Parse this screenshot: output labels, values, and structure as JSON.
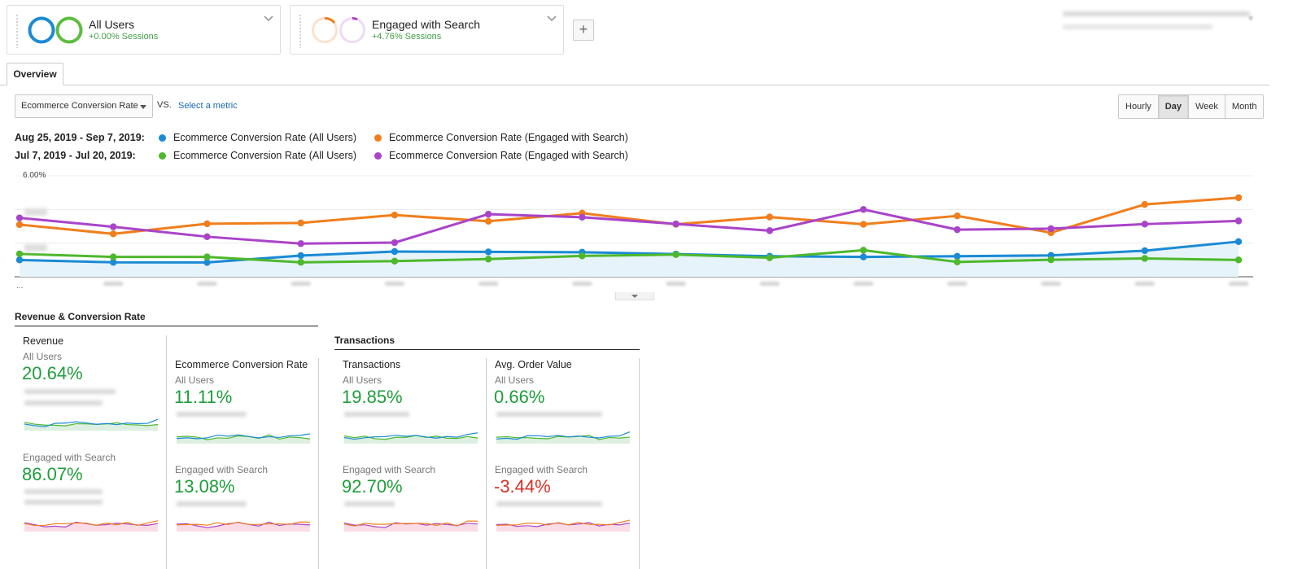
{
  "segments": [
    {
      "name": "All Users",
      "sub": "+0.00% Sessions",
      "colors": [
        "#1a8ad4",
        "#5ebd3e"
      ]
    },
    {
      "name": "Engaged with Search",
      "sub": "+4.76% Sessions",
      "colors": [
        "#f6a85a",
        "#d79ae8"
      ]
    }
  ],
  "add_segment_label": "+",
  "tabs": {
    "overview": "Overview"
  },
  "controls": {
    "metric_select": "Ecommerce Conversion Rate",
    "vs": "VS.",
    "select_metric": "Select a metric",
    "granularity": [
      "Hourly",
      "Day",
      "Week",
      "Month"
    ],
    "granularity_active": "Day"
  },
  "legend": {
    "rows": [
      {
        "date": "Aug 25, 2019 - Sep 7, 2019:",
        "items": [
          {
            "label": "Ecommerce Conversion Rate (All Users)",
            "color": "#1a8ad4"
          },
          {
            "label": "Ecommerce Conversion Rate (Engaged with Search)",
            "color": "#f07e1c"
          }
        ]
      },
      {
        "date": "Jul 7, 2019 - Jul 20, 2019:",
        "items": [
          {
            "label": "Ecommerce Conversion Rate (All Users)",
            "color": "#4eb82c"
          },
          {
            "label": "Ecommerce Conversion Rate (Engaged with Search)",
            "color": "#a944c9"
          }
        ]
      }
    ]
  },
  "chart_data": {
    "type": "line",
    "y_top_label": "6.00%",
    "x_first_label": "...",
    "ylim": [
      0,
      6
    ],
    "series": [
      {
        "name": "Ecommerce Conversion Rate (All Users)",
        "color": "#1a8ad4",
        "area": true,
        "values": [
          1.0,
          0.86,
          0.85,
          1.26,
          1.5,
          1.48,
          1.46,
          1.35,
          1.22,
          1.18,
          1.22,
          1.27,
          1.55,
          2.09
        ]
      },
      {
        "name": "Ecommerce Conversion Rate (Engaged with Search)",
        "color": "#f07e1c",
        "values": [
          3.1,
          2.55,
          3.15,
          3.2,
          3.67,
          3.3,
          3.78,
          3.12,
          3.55,
          3.12,
          3.62,
          2.62,
          4.3,
          4.7
        ]
      },
      {
        "name": "Ecommerce Conversion Rate (All Users)",
        "color": "#4eb82c",
        "values": [
          1.36,
          1.18,
          1.18,
          0.86,
          0.93,
          1.05,
          1.24,
          1.32,
          1.13,
          1.58,
          0.88,
          1.01,
          1.09,
          1.0
        ]
      },
      {
        "name": "Ecommerce Conversion Rate (Engaged with Search)",
        "color": "#a944c9",
        "values": [
          3.5,
          2.97,
          2.38,
          1.97,
          2.03,
          3.72,
          3.54,
          3.14,
          2.74,
          4.0,
          2.8,
          2.86,
          3.13,
          3.32
        ]
      }
    ]
  },
  "sections": {
    "revenue_conv": "Revenue & Conversion Rate",
    "transactions": "Transactions"
  },
  "tiles": [
    {
      "metric": "Revenue",
      "seg1": "All Users",
      "val1": "20.64%",
      "seg2": "Engaged with Search",
      "val2": "86.07%"
    },
    {
      "metric": "Ecommerce Conversion Rate",
      "seg1": "All Users",
      "val1": "11.11%",
      "seg2": "Engaged with Search",
      "val2": "13.08%"
    },
    {
      "metric": "Transactions",
      "seg1": "All Users",
      "val1": "19.85%",
      "seg2": "Engaged with Search",
      "val2": "92.70%"
    },
    {
      "metric": "Avg. Order Value",
      "seg1": "All Users",
      "val1": "0.66%",
      "seg2": "Engaged with Search",
      "val2": "-3.44%"
    }
  ]
}
